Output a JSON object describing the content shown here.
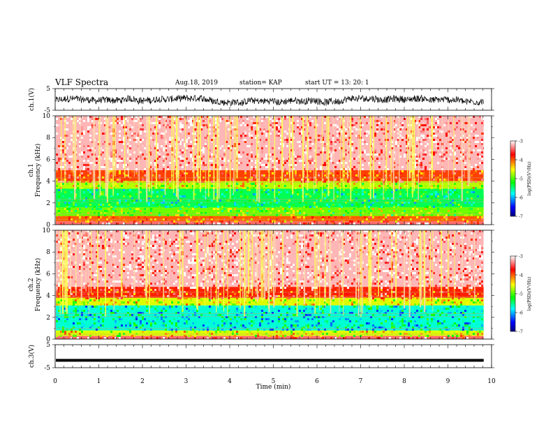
{
  "header": {
    "title": "VLF Spectra",
    "date": "Aug.18, 2019",
    "station": "station= KAP",
    "start": "start  UT  =   13: 20: 1"
  },
  "chart_data": [
    {
      "type": "line",
      "panel": "ch1-waveform",
      "ylabel": "ch.1(V)",
      "ylim": [
        -5,
        5
      ],
      "yticks": [
        "5",
        "-5"
      ],
      "x_range_min": [
        0,
        9.8
      ],
      "description_level": "noisy signal around -0.5 V with amplitude ±1.5 V"
    },
    {
      "type": "heatmap",
      "panel": "ch1-spectrogram",
      "ylabel": "ch.1\nFrequency (kHz)",
      "ylabel_lines": [
        "ch.1",
        "Frequency (kHz)"
      ],
      "ylim": [
        0,
        10
      ],
      "yticks": [
        "0",
        "2",
        "4",
        "6",
        "8",
        "10"
      ],
      "colorbar": {
        "label": "log(PSD)(V²/Hz)",
        "ticks": [
          "-3",
          "-4",
          "-5",
          "-6",
          "-7"
        ],
        "range": [
          -7,
          -3
        ]
      },
      "bands": [
        {
          "from": 0,
          "to": 0.3,
          "level": -3.4
        },
        {
          "from": 0.3,
          "to": 0.8,
          "level": -4.0
        },
        {
          "from": 0.8,
          "to": 1.6,
          "level": -4.9
        },
        {
          "from": 1.6,
          "to": 3.3,
          "level": -5.4
        },
        {
          "from": 3.3,
          "to": 4.0,
          "level": -4.7
        },
        {
          "from": 4.0,
          "to": 5.0,
          "level": -3.9
        },
        {
          "from": 5.0,
          "to": 10,
          "level": -3.2
        }
      ]
    },
    {
      "type": "heatmap",
      "panel": "ch2-spectrogram",
      "ylabel_lines": [
        "ch.2",
        "Frequency (kHz)"
      ],
      "ylim": [
        0,
        10
      ],
      "yticks": [
        "0",
        "2",
        "4",
        "6",
        "8",
        "10"
      ],
      "colorbar": {
        "label": "log(PSD)(V²/Hz)",
        "ticks": [
          "-3",
          "-4",
          "-5",
          "-6",
          "-7"
        ],
        "range": [
          -7,
          -3
        ]
      },
      "bands": [
        {
          "from": 0,
          "to": 0.3,
          "level": -3.4
        },
        {
          "from": 0.3,
          "to": 0.8,
          "level": -4.6
        },
        {
          "from": 0.8,
          "to": 3.1,
          "level": -5.7
        },
        {
          "from": 3.1,
          "to": 3.8,
          "level": -4.6
        },
        {
          "from": 3.8,
          "to": 4.8,
          "level": -3.8
        },
        {
          "from": 4.8,
          "to": 10,
          "level": -3.2
        }
      ]
    },
    {
      "type": "line",
      "panel": "ch3-waveform",
      "ylabel": "ch.3(V)",
      "ylim": [
        -5,
        5
      ],
      "yticks": [
        "5",
        "-5"
      ],
      "level": -1.8
    }
  ],
  "xaxis": {
    "label": "Time  (min)",
    "ticks": [
      "0",
      "1",
      "2",
      "3",
      "4",
      "5",
      "6",
      "7",
      "8",
      "9",
      "10"
    ],
    "xlim": [
      0,
      10
    ],
    "data_end": 9.82
  },
  "colors": {
    "scale": [
      "#00007f",
      "#0000ff",
      "#00ffff",
      "#00ff00",
      "#ffff00",
      "#ff0000",
      "#ffffff"
    ]
  }
}
